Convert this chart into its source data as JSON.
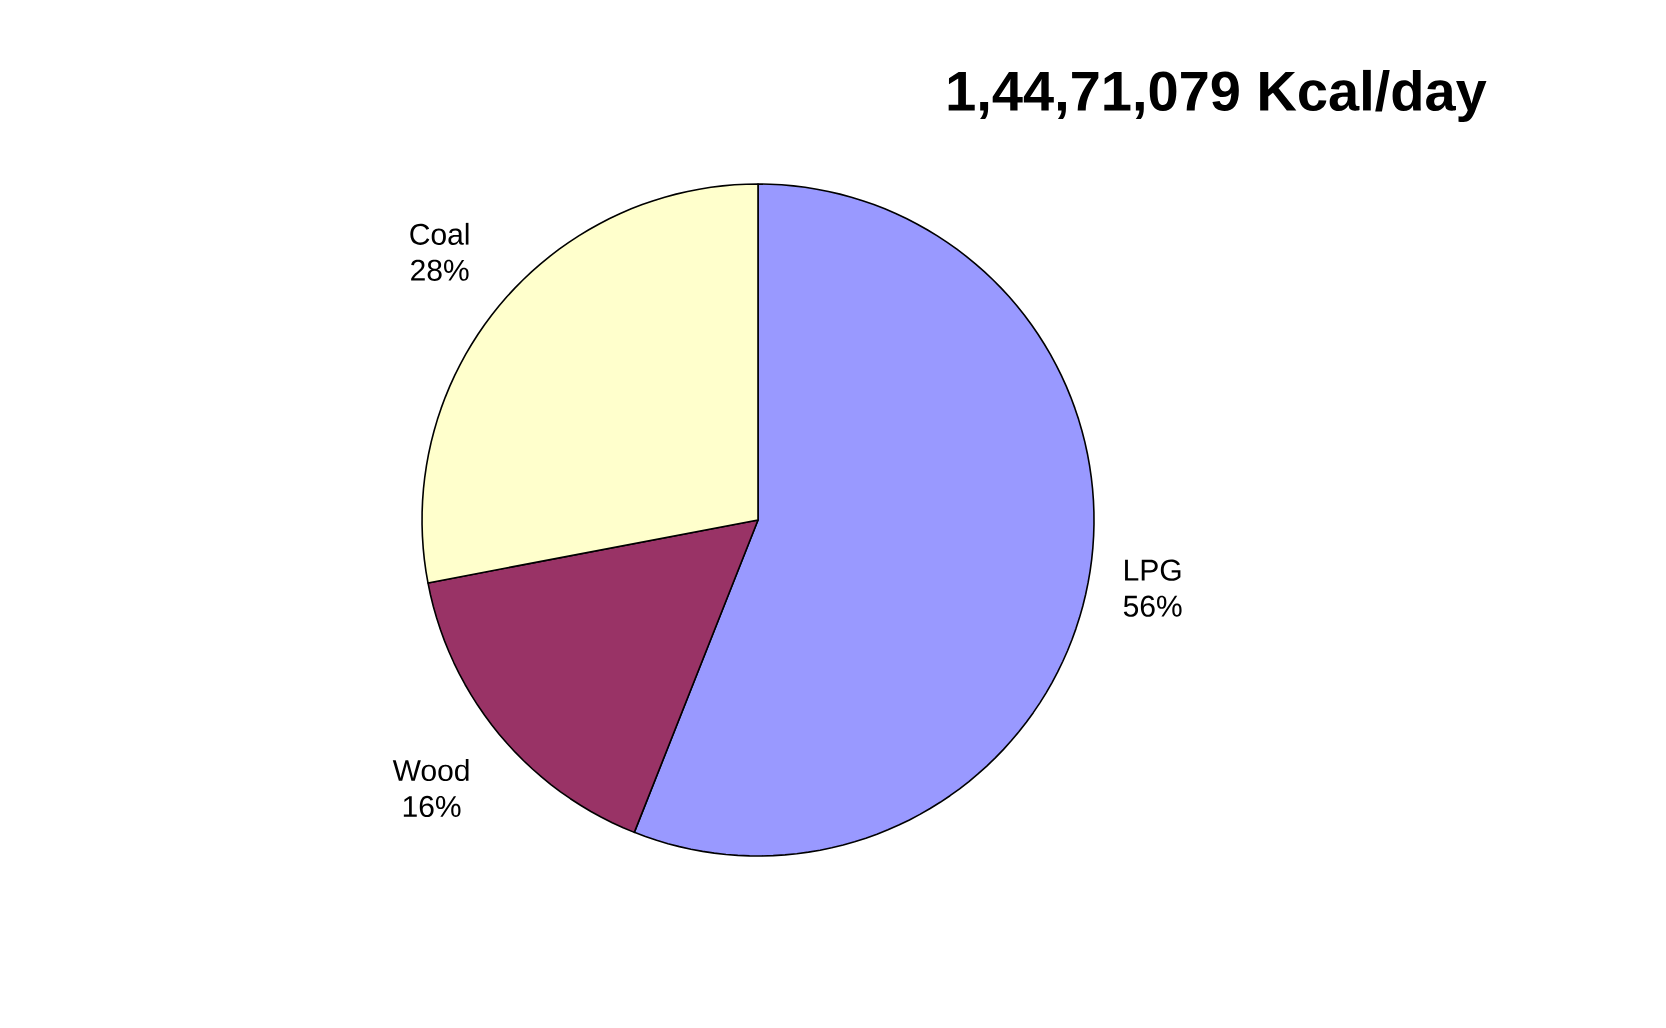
{
  "chart_data": {
    "type": "pie",
    "title": "1,44,71,079 Kcal/day",
    "categories": [
      "LPG",
      "Wood",
      "Coal"
    ],
    "values": [
      56,
      16,
      28
    ],
    "value_labels": [
      "56%",
      "16%",
      "28%"
    ],
    "colors": [
      "#9999ff",
      "#993366",
      "#ffffcc"
    ]
  }
}
